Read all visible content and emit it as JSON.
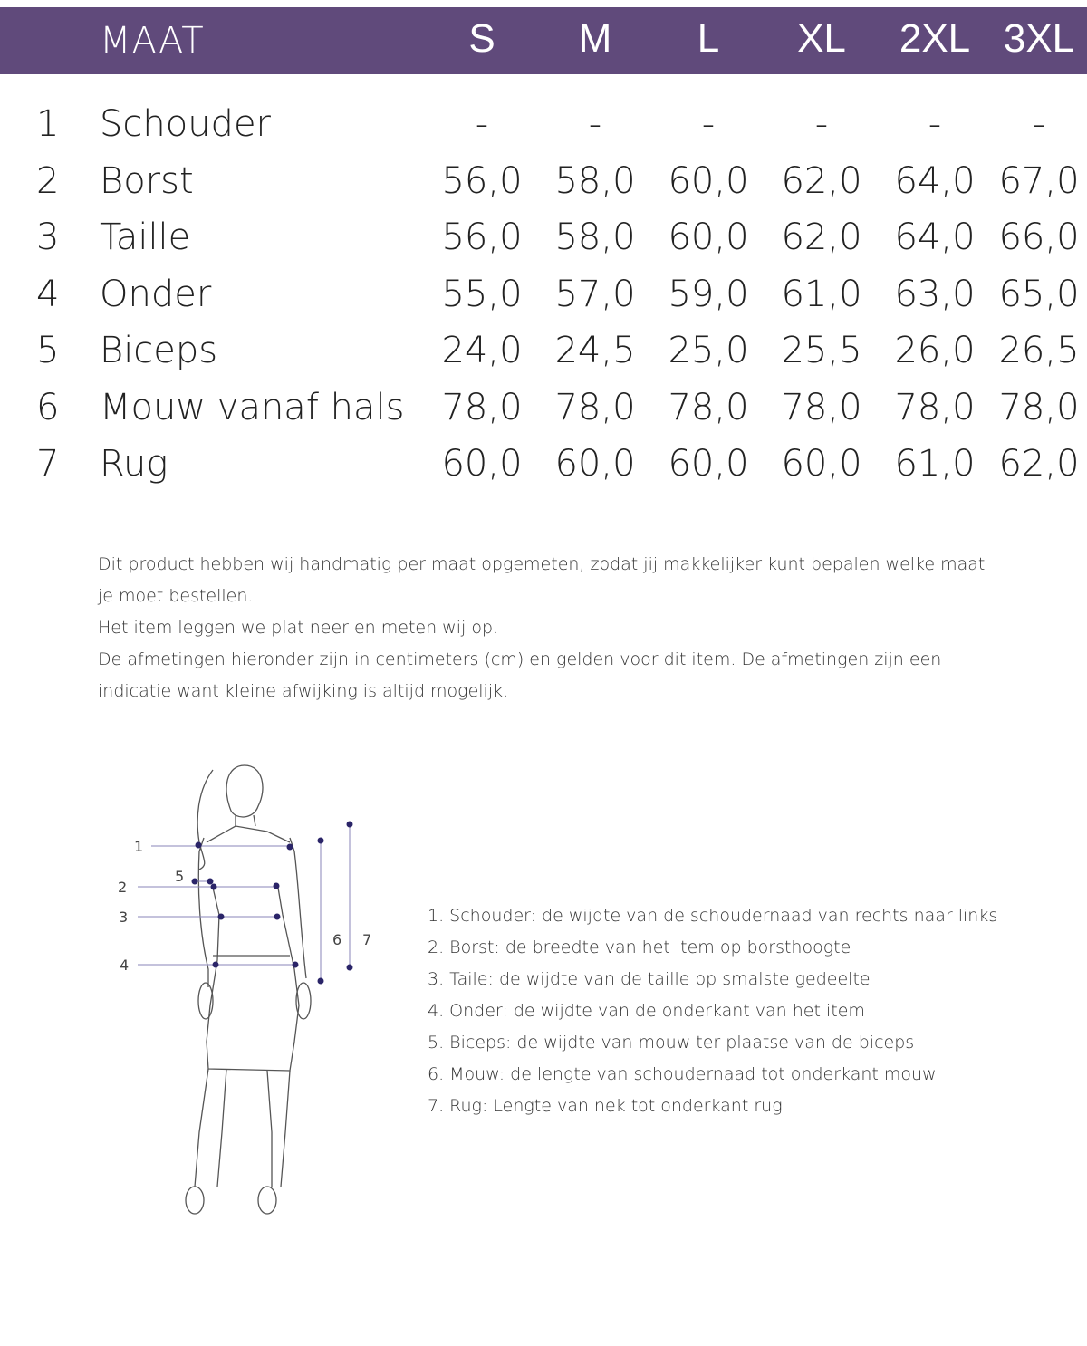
{
  "header": {
    "title": "MAAT",
    "sizes": [
      "S",
      "M",
      "L",
      "XL",
      "2XL",
      "3XL"
    ]
  },
  "accent_color": "#604a7b",
  "rows": [
    {
      "num": "1",
      "label": "Schouder",
      "values": [
        "-",
        "-",
        "-",
        "-",
        "-",
        "-"
      ]
    },
    {
      "num": "2",
      "label": "Borst",
      "values": [
        "56,0",
        "58,0",
        "60,0",
        "62,0",
        "64,0",
        "67,0"
      ]
    },
    {
      "num": "3",
      "label": "Taille",
      "values": [
        "56,0",
        "58,0",
        "60,0",
        "62,0",
        "64,0",
        "66,0"
      ]
    },
    {
      "num": "4",
      "label": "Onder",
      "values": [
        "55,0",
        "57,0",
        "59,0",
        "61,0",
        "63,0",
        "65,0"
      ]
    },
    {
      "num": "5",
      "label": "Biceps",
      "values": [
        "24,0",
        "24,5",
        "25,0",
        "25,5",
        "26,0",
        "26,5"
      ]
    },
    {
      "num": "6",
      "label": "Mouw vanaf hals",
      "values": [
        "78,0",
        "78,0",
        "78,0",
        "78,0",
        "78,0",
        "78,0"
      ]
    },
    {
      "num": "7",
      "label": "Rug",
      "values": [
        "60,0",
        "60,0",
        "60,0",
        "60,0",
        "61,0",
        "62,0"
      ]
    }
  ],
  "description": [
    "Dit product hebben wij handmatig per maat opgemeten, zodat jij makkelijker kunt bepalen welke maat je moet bestellen.",
    "Het item leggen we plat neer en meten wij op.",
    "De afmetingen hieronder zijn in centimeters (cm) en gelden voor dit item. De afmetingen zijn een indicatie want kleine afwijking is altijd mogelijk."
  ],
  "figure_labels": [
    "1",
    "2",
    "3",
    "4",
    "5",
    "6",
    "7"
  ],
  "legend": [
    "1. Schouder: de wijdte van de schoudernaad van rechts naar links",
    "2. Borst: de breedte van het item op borsthoogte",
    "3. Taile: de wijdte van de taille op smalste gedeelte",
    "4. Onder: de wijdte van de onderkant van het item",
    "5. Biceps: de wijdte van mouw ter plaatse van de biceps",
    "6. Mouw: de lengte van schoudernaad tot onderkant mouw",
    "7. Rug: Lengte van nek tot onderkant rug"
  ]
}
